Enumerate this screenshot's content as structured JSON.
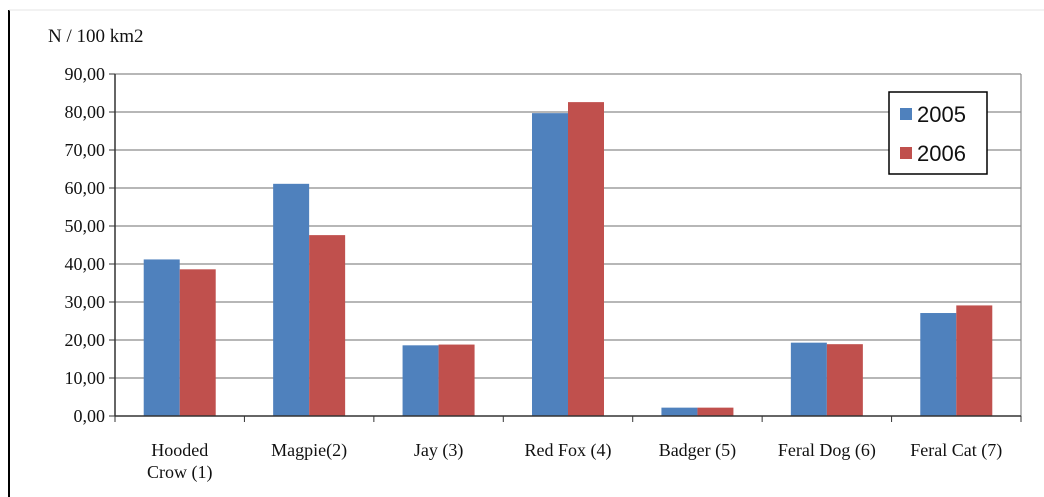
{
  "chart_data": {
    "type": "bar",
    "unit_label": "N / 100 km2",
    "categories": [
      [
        "Hooded",
        "Crow (1)"
      ],
      [
        "Magpie(2)"
      ],
      [
        "Jay (3)"
      ],
      [
        "Red Fox (4)"
      ],
      [
        "Badger (5)"
      ],
      [
        "Feral Dog (6)"
      ],
      [
        "Feral Cat (7)"
      ]
    ],
    "series": [
      {
        "name": "2005",
        "color": "#4f81bd",
        "values": [
          41.2,
          61.1,
          18.6,
          79.7,
          2.2,
          19.3,
          27.1
        ]
      },
      {
        "name": "2006",
        "color": "#c0504d",
        "values": [
          38.6,
          47.6,
          18.8,
          82.6,
          2.2,
          18.9,
          29.1
        ]
      }
    ],
    "ylim": [
      0,
      90
    ],
    "yticks": [
      "0,00",
      "10,00",
      "20,00",
      "30,00",
      "40,00",
      "50,00",
      "60,00",
      "70,00",
      "80,00",
      "90,00"
    ],
    "grid": true,
    "legend_position": "top-right"
  }
}
